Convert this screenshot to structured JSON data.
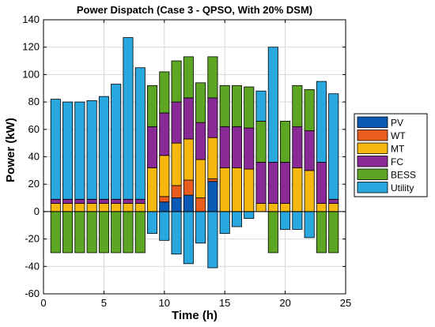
{
  "chart_data": {
    "type": "bar",
    "stacked": true,
    "title": "Power Dispatch (Case 3 - QPSO, With 20% DSM)",
    "xlabel": "Time (h)",
    "ylabel": "Power (kW)",
    "xlim": [
      0,
      25
    ],
    "ylim": [
      -60,
      140
    ],
    "xticks": [
      0,
      5,
      10,
      15,
      20,
      25
    ],
    "yticks": [
      -60,
      -40,
      -20,
      0,
      20,
      40,
      60,
      80,
      100,
      120,
      140
    ],
    "grid": true,
    "legend_position": "right",
    "x": [
      1,
      2,
      3,
      4,
      5,
      6,
      7,
      8,
      9,
      10,
      11,
      12,
      13,
      14,
      15,
      16,
      17,
      18,
      19,
      20,
      21,
      22,
      23,
      24
    ],
    "series": [
      {
        "name": "PV",
        "color": "#0a5ab5",
        "values": [
          0,
          0,
          0,
          0,
          0,
          0,
          0,
          0,
          0,
          7,
          10,
          12,
          0,
          22,
          0,
          0,
          0,
          0,
          0,
          0,
          0,
          0,
          0,
          0
        ]
      },
      {
        "name": "WT",
        "color": "#e85d1d",
        "values": [
          0,
          0,
          0,
          0,
          0,
          0,
          0,
          0,
          0,
          4,
          9,
          11,
          10,
          2,
          0,
          0,
          0,
          0,
          0,
          0,
          0,
          0,
          0,
          0
        ]
      },
      {
        "name": "MT",
        "color": "#f6b80f",
        "values": [
          6,
          6,
          6,
          6,
          6,
          6,
          6,
          6,
          32,
          30,
          31,
          30,
          28,
          30,
          32,
          32,
          31,
          6,
          6,
          6,
          32,
          30,
          6,
          6
        ]
      },
      {
        "name": "FC",
        "color": "#8a2a96",
        "values": [
          3,
          3,
          3,
          3,
          3,
          3,
          3,
          3,
          30,
          31,
          30,
          30,
          27,
          29,
          30,
          30,
          30,
          30,
          30,
          30,
          30,
          29,
          30,
          3
        ]
      },
      {
        "name": "BESS",
        "color": "#5da623",
        "values": [
          -30,
          -30,
          -30,
          -30,
          -30,
          -30,
          -30,
          -30,
          30,
          30,
          30,
          30,
          29,
          30,
          30,
          30,
          30,
          30,
          -30,
          30,
          30,
          30,
          -30,
          -30
        ]
      },
      {
        "name": "Utility",
        "color": "#29a8e0",
        "values": [
          73,
          71,
          71,
          72,
          75,
          84,
          118,
          96,
          -16,
          -21,
          -31,
          -38,
          -23,
          -41,
          -16,
          -11,
          -5,
          22,
          84,
          -13,
          -13,
          -19,
          59,
          77
        ]
      }
    ]
  }
}
